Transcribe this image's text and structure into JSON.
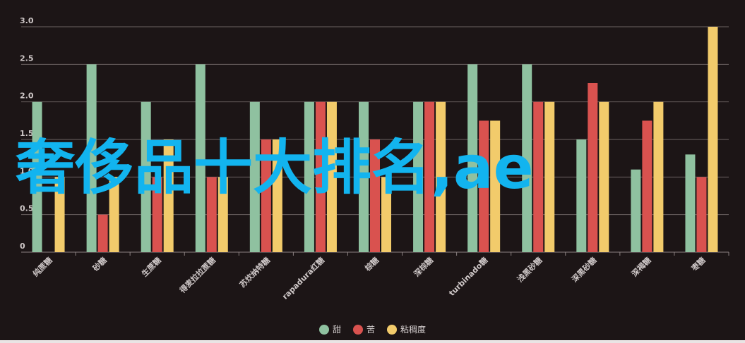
{
  "overlay_text": "奢侈品十大排名,ae",
  "chart_data": {
    "type": "bar",
    "title": "",
    "xlabel": "",
    "ylabel": "",
    "ylim": [
      0,
      3.0
    ],
    "yticks": [
      "0",
      "0.5",
      "1.0",
      "1.5",
      "2.0",
      "2.5",
      "3.0"
    ],
    "grid": true,
    "legend_position": "bottom",
    "categories": [
      "纯蔗糖",
      "砂糖",
      "生蔗糖",
      "得麦拉拉蔗糖",
      "苏炊纳特糖",
      "rapadura红糖",
      "棕糖",
      "深棕糖",
      "turbinado糖",
      "浅黑砂糖",
      "深黑砂糖",
      "深褐糖",
      "枣糖"
    ],
    "series": [
      {
        "name": "甜",
        "color": "#8fc1a0",
        "values": [
          2.0,
          2.5,
          2.0,
          2.5,
          2.0,
          2.0,
          2.0,
          2.0,
          2.5,
          2.5,
          1.5,
          1.1,
          1.3
        ]
      },
      {
        "name": "苦",
        "color": "#d9524f",
        "values": [
          0.0,
          0.5,
          1.0,
          1.0,
          1.5,
          2.0,
          1.5,
          2.0,
          1.75,
          2.0,
          2.25,
          1.75,
          1.0
        ]
      },
      {
        "name": "粘稠度",
        "color": "#f2cb6b",
        "values": [
          1.0,
          1.0,
          1.5,
          1.0,
          1.5,
          2.0,
          1.0,
          2.0,
          1.75,
          2.0,
          2.0,
          2.0,
          3.0
        ]
      }
    ]
  }
}
